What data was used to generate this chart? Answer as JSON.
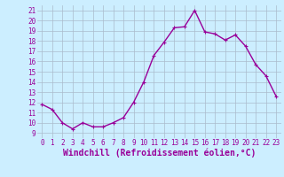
{
  "x": [
    0,
    1,
    2,
    3,
    4,
    5,
    6,
    7,
    8,
    9,
    10,
    11,
    12,
    13,
    14,
    15,
    16,
    17,
    18,
    19,
    20,
    21,
    22,
    23
  ],
  "y": [
    11.8,
    11.3,
    10.0,
    9.4,
    10.0,
    9.6,
    9.6,
    10.0,
    10.5,
    12.0,
    14.0,
    16.6,
    17.9,
    19.3,
    19.4,
    21.0,
    18.9,
    18.7,
    18.1,
    18.6,
    17.5,
    15.7,
    14.6,
    12.6
  ],
  "line_color": "#990099",
  "marker": "+",
  "marker_size": 3,
  "marker_lw": 0.8,
  "bg_color": "#cceeff",
  "grid_color": "#aabbcc",
  "xlabel": "Windchill (Refroidissement éolien,°C)",
  "xlabel_color": "#990099",
  "xlim": [
    -0.5,
    23.5
  ],
  "ylim": [
    8.5,
    21.5
  ],
  "yticks": [
    9,
    10,
    11,
    12,
    13,
    14,
    15,
    16,
    17,
    18,
    19,
    20,
    21
  ],
  "xticks": [
    0,
    1,
    2,
    3,
    4,
    5,
    6,
    7,
    8,
    9,
    10,
    11,
    12,
    13,
    14,
    15,
    16,
    17,
    18,
    19,
    20,
    21,
    22,
    23
  ],
  "tick_label_size": 5.5,
  "xlabel_size": 7.0,
  "line_width": 1.0
}
